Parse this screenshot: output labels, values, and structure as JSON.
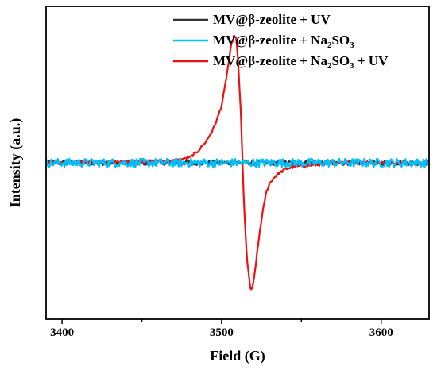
{
  "chart_data": {
    "type": "line",
    "title": "",
    "xlabel": "Field (G)",
    "ylabel": "Intensity (a.u.)",
    "xlim": [
      3390,
      3630
    ],
    "ylim": [
      -1.5,
      1.5
    ],
    "x_ticks": [
      3400,
      3500,
      3600
    ],
    "x_tick_labels": [
      "3400",
      "3500",
      "3600"
    ],
    "y_ticks": [],
    "grid": false,
    "legend": {
      "placement": "top-right",
      "entries": [
        {
          "text": "MV@β-zeolite + UV",
          "sub": "",
          "tail": ""
        },
        {
          "text": "MV@β-zeolite + Na",
          "sub": "2",
          "mid": "SO",
          "sub2": "3",
          "tail": ""
        },
        {
          "text": "MV@β-zeolite + Na",
          "sub": "2",
          "mid": "SO",
          "sub2": "3",
          "tail": " + UV"
        }
      ]
    },
    "series": [
      {
        "color": "#333333",
        "x": [
          3390,
          3630
        ],
        "y": [
          0,
          0
        ],
        "noise": 0.022
      },
      {
        "color": "#00BFFF",
        "x": [
          3390,
          3630
        ],
        "y": [
          0,
          0
        ],
        "noise": 0.04
      },
      {
        "color": "#EE1111",
        "x": [
          3390,
          3470,
          3480,
          3485,
          3490,
          3494,
          3497,
          3500,
          3502,
          3504,
          3506,
          3508,
          3509,
          3510,
          3512,
          3514,
          3516,
          3518,
          3519,
          3520,
          3522,
          3524,
          3526,
          3528,
          3530,
          3533,
          3536,
          3540,
          3545,
          3550,
          3560,
          3580,
          3600,
          3630
        ],
        "y": [
          0,
          0.02,
          0.05,
          0.11,
          0.2,
          0.3,
          0.41,
          0.55,
          0.72,
          0.92,
          1.12,
          1.22,
          1.2,
          1.05,
          0.5,
          -0.4,
          -0.95,
          -1.2,
          -1.22,
          -1.15,
          -0.9,
          -0.65,
          -0.45,
          -0.28,
          -0.2,
          -0.14,
          -0.1,
          -0.06,
          -0.04,
          -0.03,
          -0.02,
          0.01,
          0.0,
          0.0
        ],
        "noise": 0.012
      }
    ]
  }
}
